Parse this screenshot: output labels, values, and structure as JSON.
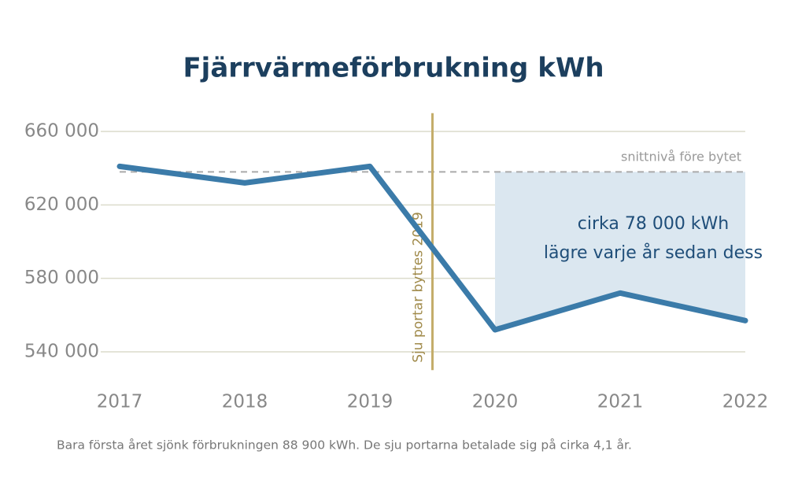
{
  "chart_data": {
    "type": "line",
    "title": "Fjärrvärmeförbrukning kWh",
    "x": [
      2017,
      2018,
      2019,
      2020,
      2021,
      2022
    ],
    "values": [
      641000,
      632000,
      641000,
      552000,
      572000,
      557000
    ],
    "color": "#3b7ba9",
    "xlim": [
      2017,
      2022
    ],
    "xticks": [
      2017,
      2018,
      2019,
      2020,
      2021,
      2022
    ],
    "ylim": [
      530000,
      670000
    ],
    "yticks": [
      {
        "value": 540000,
        "label": "540 000"
      },
      {
        "value": 580000,
        "label": "580 000"
      },
      {
        "value": 620000,
        "label": "620 000"
      },
      {
        "value": 660000,
        "label": "660 000"
      }
    ],
    "grid": true,
    "reference_line": {
      "value": 638000,
      "label": "snittnivå före bytet"
    },
    "event_line": {
      "x": 2019.5,
      "label": "Sju portar byttes 2019"
    },
    "highlight": {
      "x": [
        2020,
        2022
      ],
      "color": "#dbe7f0",
      "text": [
        "cirka 78 000 kWh",
        "lägre varje år sedan dess"
      ]
    },
    "footnote": "Bara första året sjönk förbrukningen 88 900 kWh. De sju portarna betalade sig på cirka 4,1 år."
  }
}
